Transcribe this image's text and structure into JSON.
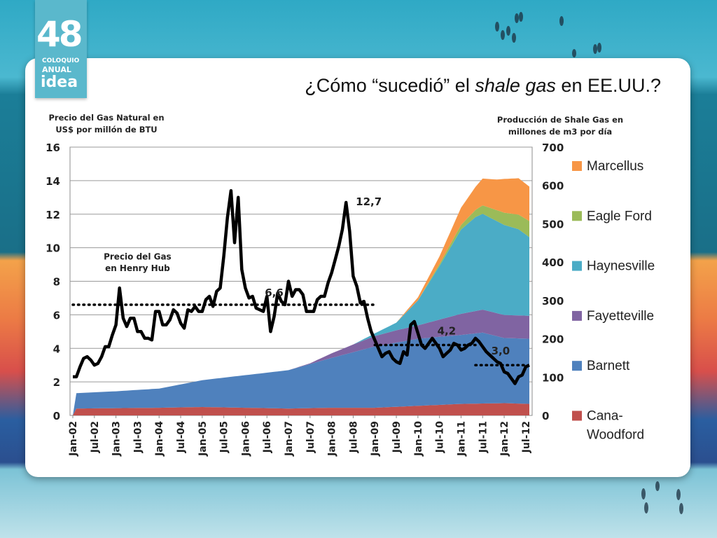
{
  "logo": {
    "number": "48",
    "line1": "COLOQUIO",
    "line2": "ANUAL",
    "line3": "idea"
  },
  "title": {
    "prefix": "¿Cómo “sucedió” el ",
    "emph": "shale gas",
    "suffix": " en EE.UU.?"
  },
  "left_axis_title": [
    "Precio del Gas Natural en",
    "US$ por millón de BTU"
  ],
  "right_axis_title": [
    "Producción de Shale Gas en",
    "millones de m3 por día"
  ],
  "chart_data": {
    "type": "area",
    "months_from": "Jan-02",
    "months_to": "Aug-12",
    "x_tick_labels": [
      "Jan-02",
      "Jul-02",
      "Jan-03",
      "Jul-03",
      "Jan-04",
      "Jul-04",
      "Jan-05",
      "Jul-05",
      "Jan-06",
      "Jul-06",
      "Jan-07",
      "Jul-07",
      "Jan-08",
      "Jul-08",
      "Jan-09",
      "Jul-09",
      "Jan-10",
      "Jul-10",
      "Jan-11",
      "Jul-11",
      "Jan-12",
      "Jul-12"
    ],
    "y_left": {
      "ylim": [
        0,
        16
      ],
      "ticks": [
        0,
        2,
        4,
        6,
        8,
        10,
        12,
        14,
        16
      ]
    },
    "y_right": {
      "ylim": [
        0,
        700
      ],
      "ticks": [
        0,
        100,
        200,
        300,
        400,
        500,
        600,
        700
      ]
    },
    "stack_series": [
      {
        "name": "Cana-\nWoodford",
        "color": "#c0504d",
        "points": [
          [
            0,
            0
          ],
          [
            1,
            18
          ],
          [
            24,
            20
          ],
          [
            36,
            22
          ],
          [
            48,
            20
          ],
          [
            60,
            18
          ],
          [
            72,
            20
          ],
          [
            84,
            20
          ],
          [
            96,
            25
          ],
          [
            108,
            30
          ],
          [
            120,
            32
          ],
          [
            127,
            30
          ]
        ]
      },
      {
        "name": "Barnett",
        "color": "#4f81bd",
        "points": [
          [
            0,
            0
          ],
          [
            1,
            40
          ],
          [
            12,
            44
          ],
          [
            24,
            50
          ],
          [
            36,
            70
          ],
          [
            48,
            85
          ],
          [
            60,
            100
          ],
          [
            72,
            130
          ],
          [
            84,
            160
          ],
          [
            96,
            175
          ],
          [
            108,
            180
          ],
          [
            114,
            185
          ],
          [
            120,
            170
          ],
          [
            127,
            170
          ]
        ]
      },
      {
        "name": "Fayetteville",
        "color": "#8064a2",
        "points": [
          [
            0,
            0
          ],
          [
            60,
            0
          ],
          [
            66,
            2
          ],
          [
            72,
            12
          ],
          [
            78,
            20
          ],
          [
            84,
            27
          ],
          [
            90,
            32
          ],
          [
            96,
            35
          ],
          [
            102,
            45
          ],
          [
            108,
            55
          ],
          [
            114,
            60
          ],
          [
            120,
            60
          ],
          [
            127,
            60
          ]
        ]
      },
      {
        "name": "Haynesville",
        "color": "#4bacc6",
        "points": [
          [
            0,
            0
          ],
          [
            78,
            0
          ],
          [
            84,
            7
          ],
          [
            90,
            20
          ],
          [
            96,
            65
          ],
          [
            102,
            140
          ],
          [
            108,
            220
          ],
          [
            112,
            245
          ],
          [
            114,
            250
          ],
          [
            120,
            235
          ],
          [
            124,
            225
          ],
          [
            127,
            205
          ]
        ]
      },
      {
        "name": "Eagle Ford",
        "color": "#9bbb59",
        "points": [
          [
            0,
            0
          ],
          [
            96,
            0
          ],
          [
            102,
            5
          ],
          [
            108,
            12
          ],
          [
            114,
            22
          ],
          [
            120,
            32
          ],
          [
            124,
            38
          ],
          [
            127,
            42
          ]
        ]
      },
      {
        "name": "Marcellus",
        "color": "#f79646",
        "points": [
          [
            0,
            0
          ],
          [
            90,
            0
          ],
          [
            96,
            8
          ],
          [
            102,
            20
          ],
          [
            108,
            45
          ],
          [
            112,
            60
          ],
          [
            114,
            70
          ],
          [
            118,
            80
          ],
          [
            120,
            88
          ],
          [
            124,
            95
          ],
          [
            127,
            90
          ]
        ]
      }
    ],
    "price_series": {
      "name": "Precio del Gas en Henry Hub",
      "points": [
        [
          0,
          2.3
        ],
        [
          1,
          2.3
        ],
        [
          2,
          2.9
        ],
        [
          3,
          3.4
        ],
        [
          4,
          3.5
        ],
        [
          5,
          3.3
        ],
        [
          6,
          3.0
        ],
        [
          7,
          3.1
        ],
        [
          8,
          3.5
        ],
        [
          9,
          4.1
        ],
        [
          10,
          4.1
        ],
        [
          11,
          4.8
        ],
        [
          12,
          5.4
        ],
        [
          13,
          7.6
        ],
        [
          14,
          5.8
        ],
        [
          15,
          5.3
        ],
        [
          16,
          5.8
        ],
        [
          17,
          5.8
        ],
        [
          18,
          5.0
        ],
        [
          19,
          5.0
        ],
        [
          20,
          4.6
        ],
        [
          21,
          4.6
        ],
        [
          22,
          4.5
        ],
        [
          23,
          6.2
        ],
        [
          24,
          6.2
        ],
        [
          25,
          5.4
        ],
        [
          26,
          5.4
        ],
        [
          27,
          5.7
        ],
        [
          28,
          6.3
        ],
        [
          29,
          6.1
        ],
        [
          30,
          5.5
        ],
        [
          31,
          5.2
        ],
        [
          32,
          6.3
        ],
        [
          33,
          6.2
        ],
        [
          34,
          6.5
        ],
        [
          35,
          6.2
        ],
        [
          36,
          6.2
        ],
        [
          37,
          6.9
        ],
        [
          38,
          7.1
        ],
        [
          39,
          6.5
        ],
        [
          40,
          7.4
        ],
        [
          41,
          7.6
        ],
        [
          42,
          9.5
        ],
        [
          43,
          11.8
        ],
        [
          44,
          13.4
        ],
        [
          45,
          10.3
        ],
        [
          46,
          13.0
        ],
        [
          47,
          8.7
        ],
        [
          48,
          7.6
        ],
        [
          49,
          7.0
        ],
        [
          50,
          7.1
        ],
        [
          51,
          6.4
        ],
        [
          52,
          6.3
        ],
        [
          53,
          6.2
        ],
        [
          54,
          7.1
        ],
        [
          55,
          5.0
        ],
        [
          56,
          5.9
        ],
        [
          57,
          7.3
        ],
        [
          58,
          6.8
        ],
        [
          59,
          6.6
        ],
        [
          60,
          8.0
        ],
        [
          61,
          7.1
        ],
        [
          62,
          7.5
        ],
        [
          63,
          7.5
        ],
        [
          64,
          7.2
        ],
        [
          65,
          6.2
        ],
        [
          66,
          6.2
        ],
        [
          67,
          6.2
        ],
        [
          68,
          6.9
        ],
        [
          69,
          7.1
        ],
        [
          70,
          7.1
        ],
        [
          71,
          7.9
        ],
        [
          72,
          8.5
        ],
        [
          73,
          9.3
        ],
        [
          74,
          10.1
        ],
        [
          75,
          11.1
        ],
        [
          76,
          12.7
        ],
        [
          77,
          11.0
        ],
        [
          78,
          8.3
        ],
        [
          79,
          7.7
        ],
        [
          80,
          6.7
        ],
        [
          81,
          6.8
        ],
        [
          82,
          5.8
        ],
        [
          83,
          5.0
        ],
        [
          84,
          4.5
        ],
        [
          85,
          4.0
        ],
        [
          86,
          3.5
        ],
        [
          87,
          3.7
        ],
        [
          88,
          3.8
        ],
        [
          89,
          3.4
        ],
        [
          90,
          3.2
        ],
        [
          91,
          3.1
        ],
        [
          92,
          3.8
        ],
        [
          93,
          3.6
        ],
        [
          94,
          5.4
        ],
        [
          95,
          5.6
        ],
        [
          96,
          4.9
        ],
        [
          97,
          4.2
        ],
        [
          98,
          4.0
        ],
        [
          99,
          4.3
        ],
        [
          100,
          4.6
        ],
        [
          101,
          4.3
        ],
        [
          102,
          4.0
        ],
        [
          103,
          3.5
        ],
        [
          104,
          3.7
        ],
        [
          105,
          3.9
        ],
        [
          106,
          4.3
        ],
        [
          107,
          4.2
        ],
        [
          108,
          3.9
        ],
        [
          109,
          4.0
        ],
        [
          110,
          4.2
        ],
        [
          111,
          4.3
        ],
        [
          112,
          4.6
        ],
        [
          113,
          4.4
        ],
        [
          114,
          4.1
        ],
        [
          115,
          3.8
        ],
        [
          116,
          3.6
        ],
        [
          117,
          3.4
        ],
        [
          118,
          3.2
        ],
        [
          119,
          3.1
        ],
        [
          120,
          2.6
        ],
        [
          121,
          2.5
        ],
        [
          122,
          2.2
        ],
        [
          123,
          1.9
        ],
        [
          124,
          2.3
        ],
        [
          125,
          2.4
        ],
        [
          126,
          2.9
        ],
        [
          127,
          3.0
        ]
      ]
    },
    "average_lines": [
      {
        "from": 0,
        "to": 84,
        "value": 6.6,
        "label": "6,6"
      },
      {
        "from": 84,
        "to": 112,
        "value": 4.2,
        "label": "4,2"
      },
      {
        "from": 112,
        "to": 126,
        "value": 3.0,
        "label": "3,0"
      }
    ],
    "annotations": [
      {
        "text": "12,7",
        "x": 76,
        "y": 12.7
      },
      {
        "text": "Precio del Gas",
        "x": 18,
        "y": 9.3
      },
      {
        "text": "en Henry Hub",
        "x": 18,
        "y": 8.6
      }
    ],
    "legend_position": "right"
  }
}
